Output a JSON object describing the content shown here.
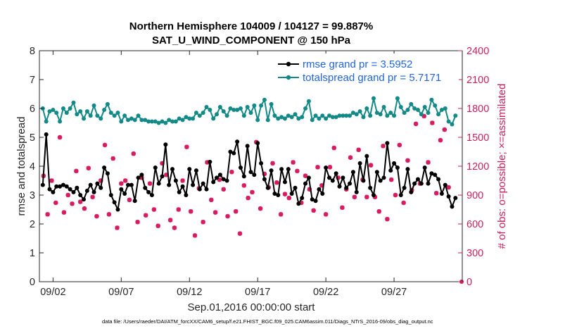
{
  "colors": {
    "rmse": "#000000",
    "spread": "#138a87",
    "obs": "#d81b60",
    "right_axis": "#cc1f5a",
    "legend_text": "#2264e0"
  },
  "chart_data": {
    "type": "line",
    "title_line1": "Northern Hemisphere 104009 / 104127 = 99.887%",
    "title_line2": "SAT_U_WIND_COMPONENT @ 150 hPa",
    "xlabel": "Sep.01,2016 00:00:00 start",
    "ylabel": "rmse and totalspread",
    "ylabel_right": "# of obs: o=possible; ×=assimilated",
    "footnote": "data file: /Users/raeder/DAI/ATM_forcXX/CAM6_setup/f.e21.FHIST_BGC.f09_025.CAM6assim.011/Diags_NTrS_2016-09/obs_diag_output.nc",
    "x_start_date": "2016-09-01",
    "xlim": [
      1.0,
      32.0
    ],
    "ylim": [
      0,
      8
    ],
    "ylim_right": [
      0,
      2400
    ],
    "x_ticks": [
      2,
      7,
      12,
      17,
      22,
      27
    ],
    "x_tick_labels": [
      "09/02",
      "09/07",
      "09/12",
      "09/17",
      "09/22",
      "09/27"
    ],
    "y_ticks": [
      0,
      1,
      2,
      3,
      4,
      5,
      6,
      7,
      8
    ],
    "y_tick_labels": [
      "0",
      "1",
      "2",
      "3",
      "4",
      "5",
      "6",
      "7",
      "8"
    ],
    "y_right_ticks": [
      0,
      300,
      600,
      900,
      1200,
      1500,
      1800,
      2100,
      2400
    ],
    "y_right_tick_labels": [
      "0",
      "300",
      "600",
      "900",
      "1200",
      "1500",
      "1800",
      "2100",
      "2400"
    ],
    "grid": false,
    "legend_position": "top-right",
    "series": [
      {
        "name": "rmse grand pr = 3.5952",
        "axis": "left",
        "x": [
          1.25,
          1.5,
          1.75,
          2.0,
          2.25,
          2.5,
          2.75,
          3.0,
          3.25,
          3.5,
          3.75,
          4.0,
          4.25,
          4.5,
          4.75,
          5.0,
          5.25,
          5.5,
          5.75,
          6.0,
          6.25,
          6.5,
          6.75,
          7.0,
          7.25,
          7.5,
          7.75,
          8.0,
          8.25,
          8.5,
          8.75,
          9.0,
          9.25,
          9.5,
          9.75,
          10.0,
          10.25,
          10.5,
          10.75,
          11.0,
          11.25,
          11.5,
          11.75,
          12.0,
          12.25,
          12.5,
          12.75,
          13.0,
          13.25,
          13.5,
          13.75,
          14.0,
          14.25,
          14.5,
          14.75,
          15.0,
          15.25,
          15.5,
          15.75,
          16.0,
          16.25,
          16.5,
          16.75,
          17.0,
          17.25,
          17.5,
          17.75,
          18.0,
          18.25,
          18.5,
          18.75,
          19.0,
          19.25,
          19.5,
          19.75,
          20.0,
          20.25,
          20.5,
          20.75,
          21.0,
          21.25,
          21.5,
          21.75,
          22.0,
          22.25,
          22.5,
          22.75,
          23.0,
          23.25,
          23.5,
          23.75,
          24.0,
          24.25,
          24.5,
          24.75,
          25.0,
          25.25,
          25.5,
          25.75,
          26.0,
          26.25,
          26.5,
          26.75,
          27.0,
          27.25,
          27.5,
          27.75,
          28.0,
          28.25,
          28.5,
          28.75,
          29.0,
          29.25,
          29.5,
          29.75,
          30.0,
          30.25,
          30.5,
          30.75,
          31.0,
          31.25,
          31.5
        ],
        "values": [
          3.35,
          5.1,
          3.2,
          3.1,
          3.3,
          3.3,
          3.35,
          3.3,
          3.2,
          3.1,
          3.25,
          3.0,
          2.85,
          3.15,
          3.35,
          3.1,
          3.4,
          3.25,
          3.95,
          3.75,
          3.0,
          2.75,
          2.5,
          3.2,
          3.05,
          3.35,
          3.35,
          2.8,
          3.6,
          3.7,
          3.25,
          3.1,
          3.0,
          3.95,
          3.4,
          3.65,
          4.75,
          3.35,
          3.9,
          3.5,
          3.1,
          3.3,
          3.0,
          3.9,
          3.35,
          3.85,
          3.2,
          3.4,
          3.2,
          4.15,
          3.45,
          3.6,
          3.7,
          3.55,
          3.5,
          4.5,
          4.45,
          4.85,
          3.95,
          3.65,
          4.7,
          3.8,
          3.7,
          4.8,
          4.1,
          3.55,
          3.25,
          3.85,
          3.05,
          3.0,
          3.9,
          3.45,
          3.9,
          3.05,
          3.25,
          2.7,
          2.9,
          3.4,
          3.6,
          2.85,
          2.8,
          3.2,
          3.05,
          3.95,
          3.6,
          3.5,
          3.75,
          3.3,
          3.6,
          3.25,
          3.4,
          3.8,
          3.1,
          4.1,
          3.5,
          4.35,
          3.25,
          3.0,
          3.8,
          3.5,
          3.6,
          4.8,
          3.85,
          4.1,
          3.95,
          3.0,
          3.25,
          3.9,
          3.1,
          3.4,
          3.55,
          3.4,
          3.95,
          3.4,
          3.75,
          3.7,
          3.55,
          3.05,
          3.35,
          2.95,
          2.6,
          2.9
        ],
        "color": "#000000"
      },
      {
        "name": "totalspread grand pr = 5.7171",
        "axis": "left",
        "x": [
          1.25,
          1.5,
          1.75,
          2.0,
          2.25,
          2.5,
          2.75,
          3.0,
          3.25,
          3.5,
          3.75,
          4.0,
          4.25,
          4.5,
          4.75,
          5.0,
          5.25,
          5.5,
          5.75,
          6.0,
          6.25,
          6.5,
          6.75,
          7.0,
          7.25,
          7.5,
          7.75,
          8.0,
          8.25,
          8.5,
          8.75,
          9.0,
          9.25,
          9.5,
          9.75,
          10.0,
          10.25,
          10.5,
          10.75,
          11.0,
          11.25,
          11.5,
          11.75,
          12.0,
          12.25,
          12.5,
          12.75,
          13.0,
          13.25,
          13.5,
          13.75,
          14.0,
          14.25,
          14.5,
          14.75,
          15.0,
          15.25,
          15.5,
          15.75,
          16.0,
          16.25,
          16.5,
          16.75,
          17.0,
          17.25,
          17.5,
          17.75,
          18.0,
          18.25,
          18.5,
          18.75,
          19.0,
          19.25,
          19.5,
          19.75,
          20.0,
          20.25,
          20.5,
          20.75,
          21.0,
          21.25,
          21.5,
          21.75,
          22.0,
          22.25,
          22.5,
          22.75,
          23.0,
          23.25,
          23.5,
          23.75,
          24.0,
          24.25,
          24.5,
          24.75,
          25.0,
          25.25,
          25.5,
          25.75,
          26.0,
          26.25,
          26.5,
          26.75,
          27.0,
          27.25,
          27.5,
          27.75,
          28.0,
          28.25,
          28.5,
          28.75,
          29.0,
          29.25,
          29.5,
          29.75,
          30.0,
          30.25,
          30.5,
          30.75,
          31.0,
          31.25,
          31.5
        ],
        "values": [
          6.0,
          5.55,
          5.9,
          5.95,
          5.85,
          5.55,
          6.0,
          5.85,
          6.0,
          6.2,
          5.8,
          5.9,
          5.65,
          5.9,
          5.75,
          6.1,
          5.75,
          5.65,
          5.95,
          6.15,
          5.85,
          5.75,
          5.85,
          5.55,
          5.75,
          5.6,
          5.65,
          5.6,
          5.75,
          5.6,
          5.6,
          5.55,
          5.55,
          5.55,
          5.5,
          5.55,
          5.5,
          5.6,
          5.55,
          5.55,
          5.65,
          5.6,
          5.7,
          5.65,
          5.65,
          5.85,
          5.75,
          5.85,
          6.05,
          5.95,
          5.65,
          5.8,
          6.05,
          5.9,
          5.75,
          6.0,
          5.95,
          5.95,
          6.0,
          5.75,
          6.05,
          5.85,
          6.1,
          5.6,
          6.1,
          6.3,
          5.6,
          6.15,
          5.75,
          5.65,
          5.7,
          5.65,
          5.75,
          5.7,
          5.8,
          5.65,
          5.7,
          6.0,
          6.25,
          5.6,
          5.75,
          5.65,
          5.75,
          5.65,
          5.75,
          5.7,
          5.7,
          5.75,
          5.75,
          5.75,
          5.75,
          5.85,
          5.8,
          5.9,
          5.7,
          6.0,
          5.75,
          6.35,
          5.85,
          5.8,
          6.05,
          5.75,
          5.85,
          5.75,
          6.35,
          6.05,
          5.85,
          5.95,
          6.15,
          6.0,
          5.95,
          5.8,
          6.05,
          5.85,
          6.3,
          6.1,
          5.8,
          5.95,
          6.0,
          5.55,
          5.45,
          5.75
        ],
        "color": "#138a87"
      },
      {
        "name": "# of obs assimilated",
        "axis": "right",
        "type": "scatter",
        "x": [
          1.3,
          1.6,
          1.9,
          2.2,
          2.5,
          2.8,
          3.1,
          3.4,
          3.7,
          4.0,
          4.3,
          4.6,
          4.9,
          5.2,
          5.5,
          5.8,
          6.1,
          6.4,
          6.7,
          7.0,
          7.3,
          7.6,
          7.9,
          8.2,
          8.5,
          8.8,
          9.1,
          9.4,
          9.7,
          10.0,
          10.3,
          10.6,
          10.9,
          11.2,
          11.5,
          11.8,
          12.1,
          12.4,
          12.7,
          13.0,
          13.3,
          13.6,
          13.9,
          14.2,
          14.5,
          14.8,
          15.1,
          15.4,
          15.7,
          16.0,
          16.3,
          16.6,
          16.9,
          17.2,
          17.5,
          17.8,
          18.1,
          18.4,
          18.7,
          19.0,
          19.3,
          19.6,
          19.9,
          20.2,
          20.5,
          20.8,
          21.1,
          21.4,
          21.7,
          22.0,
          22.3,
          22.6,
          22.9,
          23.2,
          23.5,
          23.8,
          24.1,
          24.4,
          24.7,
          25.0,
          25.3,
          25.6,
          25.9,
          26.2,
          26.5,
          26.8,
          27.1,
          27.4,
          27.7,
          28.0,
          28.3,
          28.6,
          28.9,
          29.2,
          29.5,
          29.8,
          30.1,
          30.4,
          30.7,
          31.0
        ],
        "values": [
          1100,
          700,
          1050,
          820,
          1500,
          720,
          900,
          810,
          1150,
          830,
          760,
          1180,
          880,
          680,
          1050,
          1420,
          700,
          1280,
          560,
          1020,
          1050,
          850,
          1330,
          620,
          1080,
          690,
          1020,
          750,
          580,
          1230,
          1110,
          640,
          560,
          750,
          1050,
          1400,
          730,
          480,
          970,
          620,
          1240,
          850,
          720,
          1060,
          960,
          680,
          1140,
          730,
          500,
          1000,
          870,
          930,
          1450,
          760,
          1120,
          980,
          1230,
          1030,
          700,
          910,
          870,
          1240,
          1150,
          820,
          1100,
          960,
          740,
          1190,
          1000,
          700,
          1190,
          1390,
          1080,
          770,
          960,
          1290,
          880,
          1370,
          1060,
          880,
          1210,
          880,
          730,
          1410,
          650,
          1060,
          900,
          1420,
          820,
          1260,
          950,
          1640,
          1020,
          1720,
          1240,
          1650,
          920,
          1470,
          1580,
          980
        ]
      }
    ]
  }
}
